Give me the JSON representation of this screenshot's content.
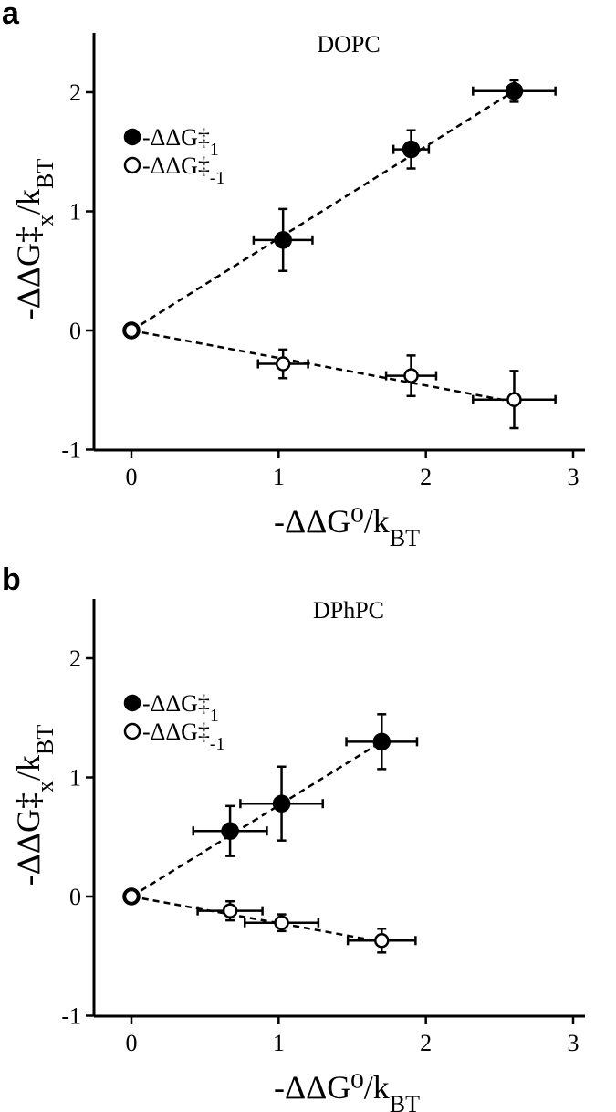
{
  "chart_data": [
    {
      "type": "scatter",
      "panel_label": "a",
      "title": "DOPC",
      "xlabel": "-ΔΔG⁰/k_BT",
      "ylabel": "-ΔΔG‡_x/k_BT",
      "xlim": [
        -0.25,
        3.25
      ],
      "ylim": [
        -1,
        2.5
      ],
      "xticks": [
        0,
        1,
        2,
        3
      ],
      "yticks": [
        -1,
        0,
        1,
        2
      ],
      "legend_position": "upper-left",
      "series": [
        {
          "name": "-ΔΔG‡_1",
          "marker": "filled-circle",
          "color": "#000000",
          "points": [
            {
              "x": 0,
              "y": 0,
              "xerr": 0,
              "yerr": 0
            },
            {
              "x": 1.03,
              "y": 0.76,
              "xerr": 0.2,
              "yerr": 0.26
            },
            {
              "x": 1.9,
              "y": 1.52,
              "xerr": 0.12,
              "yerr": 0.16
            },
            {
              "x": 2.6,
              "y": 2.01,
              "xerr": 0.28,
              "yerr": 0.09
            }
          ],
          "fit": {
            "x": [
              0,
              2.6
            ],
            "y": [
              0,
              2.01
            ]
          }
        },
        {
          "name": "-ΔΔG‡_-1",
          "marker": "open-circle",
          "color": "#000000",
          "points": [
            {
              "x": 0,
              "y": 0,
              "xerr": 0,
              "yerr": 0
            },
            {
              "x": 1.03,
              "y": -0.28,
              "xerr": 0.17,
              "yerr": 0.12
            },
            {
              "x": 1.9,
              "y": -0.38,
              "xerr": 0.17,
              "yerr": 0.17
            },
            {
              "x": 2.6,
              "y": -0.58,
              "xerr": 0.28,
              "yerr": 0.24
            }
          ],
          "fit": {
            "x": [
              0,
              2.6
            ],
            "y": [
              0,
              -0.6
            ]
          }
        }
      ]
    },
    {
      "type": "scatter",
      "panel_label": "b",
      "title": "DPhPC",
      "xlabel": "-ΔΔG⁰/k_BT",
      "ylabel": "-ΔΔG‡_x/k_BT",
      "xlim": [
        -0.25,
        3.25
      ],
      "ylim": [
        -1,
        2.5
      ],
      "xticks": [
        0,
        1,
        2,
        3
      ],
      "yticks": [
        -1,
        0,
        1,
        2
      ],
      "legend_position": "upper-left",
      "series": [
        {
          "name": "-ΔΔG‡_1",
          "marker": "filled-circle",
          "color": "#000000",
          "points": [
            {
              "x": 0,
              "y": 0,
              "xerr": 0,
              "yerr": 0
            },
            {
              "x": 0.67,
              "y": 0.55,
              "xerr": 0.25,
              "yerr": 0.21
            },
            {
              "x": 1.02,
              "y": 0.78,
              "xerr": 0.28,
              "yerr": 0.31
            },
            {
              "x": 1.7,
              "y": 1.3,
              "xerr": 0.24,
              "yerr": 0.23
            }
          ],
          "fit": {
            "x": [
              0,
              1.7
            ],
            "y": [
              0,
              1.3
            ]
          }
        },
        {
          "name": "-ΔΔG‡_-1",
          "marker": "open-circle",
          "color": "#000000",
          "points": [
            {
              "x": 0,
              "y": 0,
              "xerr": 0,
              "yerr": 0
            },
            {
              "x": 0.67,
              "y": -0.12,
              "xerr": 0.22,
              "yerr": 0.08
            },
            {
              "x": 1.02,
              "y": -0.22,
              "xerr": 0.25,
              "yerr": 0.07
            },
            {
              "x": 1.7,
              "y": -0.37,
              "xerr": 0.23,
              "yerr": 0.1
            }
          ],
          "fit": {
            "x": [
              0,
              1.7
            ],
            "y": [
              0,
              -0.38
            ]
          }
        }
      ]
    }
  ]
}
